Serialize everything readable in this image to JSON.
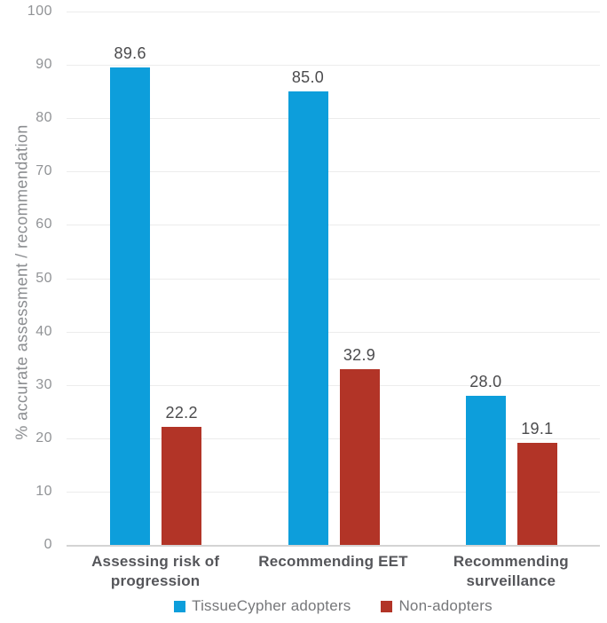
{
  "chart_data": {
    "type": "bar",
    "title": "",
    "categories": [
      "Assessing risk of progression",
      "Recommending EET",
      "Recommending surveillance"
    ],
    "series": [
      {
        "name": "TissueCypher adopters",
        "color": "#0d9edb",
        "values": [
          89.6,
          85.0,
          28.0
        ]
      },
      {
        "name": "Non-adopters",
        "color": "#b23427",
        "values": [
          22.2,
          32.9,
          19.1
        ]
      }
    ],
    "xlabel": "",
    "ylabel": "% accurate assessment / recommendation",
    "ylim": [
      0,
      100
    ],
    "yticks": [
      0,
      10,
      20,
      30,
      40,
      50,
      60,
      70,
      80,
      90,
      100
    ],
    "grid": true,
    "legend_position": "bottom",
    "value_label_decimals": 1
  }
}
